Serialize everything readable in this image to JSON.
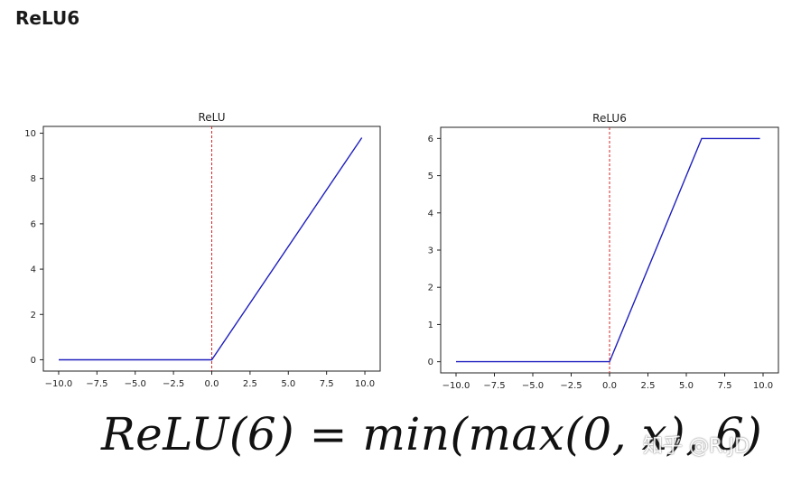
{
  "heading": "ReLU6",
  "formula": "ReLU(6) = min(max(0, x), 6)",
  "watermark": "知乎 @R.JD",
  "colors": {
    "line": "#1f1fbf",
    "vline": "#d62728",
    "axes": "#222222"
  },
  "chart_data": [
    {
      "type": "line",
      "title": "ReLU",
      "xlabel": "",
      "ylabel": "",
      "xlim": [
        -11,
        11
      ],
      "ylim": [
        -0.5,
        10.3
      ],
      "x_ticks": [
        -10.0,
        -7.5,
        -5.0,
        -2.5,
        0.0,
        2.5,
        5.0,
        7.5,
        10.0
      ],
      "x_tick_labels": [
        "−10.0",
        "−7.5",
        "−5.0",
        "−2.5",
        "0.0",
        "2.5",
        "5.0",
        "7.5",
        "10.0"
      ],
      "y_ticks": [
        0,
        2,
        4,
        6,
        8,
        10
      ],
      "y_tick_labels": [
        "0",
        "2",
        "4",
        "6",
        "8",
        "10"
      ],
      "vline_x": 0,
      "grid": false,
      "series": [
        {
          "x": [
            -10,
            0,
            9.8
          ],
          "y": [
            0,
            0,
            9.8
          ]
        }
      ]
    },
    {
      "type": "line",
      "title": "ReLU6",
      "xlabel": "",
      "ylabel": "",
      "xlim": [
        -11,
        11
      ],
      "ylim": [
        -0.3,
        6.3
      ],
      "x_ticks": [
        -10.0,
        -7.5,
        -5.0,
        -2.5,
        0.0,
        2.5,
        5.0,
        7.5,
        10.0
      ],
      "x_tick_labels": [
        "−10.0",
        "−7.5",
        "−5.0",
        "−2.5",
        "0.0",
        "2.5",
        "5.0",
        "7.5",
        "10.0"
      ],
      "y_ticks": [
        0,
        1,
        2,
        3,
        4,
        5,
        6
      ],
      "y_tick_labels": [
        "0",
        "1",
        "2",
        "3",
        "4",
        "5",
        "6"
      ],
      "vline_x": 0,
      "grid": false,
      "series": [
        {
          "x": [
            -10,
            0,
            6,
            9.8
          ],
          "y": [
            0,
            0,
            6,
            6
          ]
        }
      ]
    }
  ]
}
